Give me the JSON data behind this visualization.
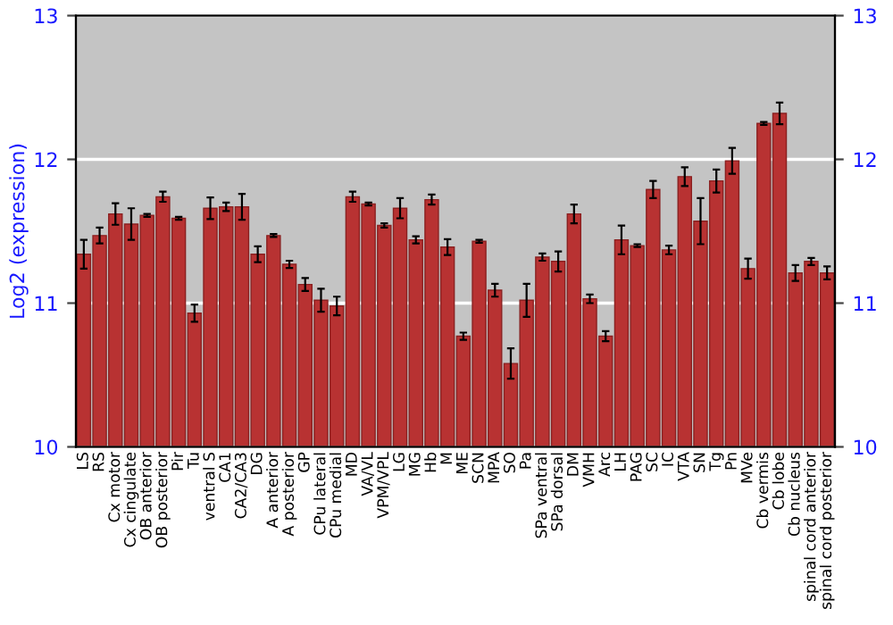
{
  "chart_data": {
    "type": "bar",
    "ylabel": "Log2 (expression)",
    "categories": [
      "LS",
      "RS",
      "Cx motor",
      "Cx cingulate",
      "OB anterior",
      "OB posterior",
      "Pir",
      "Tu",
      "ventral S",
      "CA1",
      "CA2/CA3",
      "DG",
      "A anterior",
      "A posterior",
      "GP",
      "CPu lateral",
      "CPu medial",
      "MD",
      "VA/VL",
      "VPM/VPL",
      "LG",
      "MG",
      "Hb",
      "M",
      "ME",
      "SCN",
      "MPA",
      "SO",
      "Pa",
      "SPa ventral",
      "SPa dorsal",
      "DM",
      "VMH",
      "Arc",
      "LH",
      "PAG",
      "SC",
      "IC",
      "VTA",
      "SN",
      "Tg",
      "Pn",
      "MVe",
      "Cb vermis",
      "Cb lobe",
      "Cb nucleus",
      "spinal cord anterior",
      "spinal cord posterior"
    ],
    "values": [
      11.34,
      11.47,
      11.62,
      11.55,
      11.61,
      11.74,
      11.59,
      10.93,
      11.66,
      11.67,
      11.67,
      11.34,
      11.47,
      11.27,
      11.13,
      11.02,
      10.98,
      11.74,
      11.69,
      11.54,
      11.66,
      11.44,
      11.72,
      11.39,
      10.77,
      11.43,
      11.09,
      10.58,
      11.02,
      11.32,
      11.29,
      11.62,
      11.03,
      10.77,
      11.44,
      11.4,
      11.79,
      11.37,
      11.88,
      11.57,
      11.85,
      11.99,
      11.24,
      12.25,
      12.32,
      11.21,
      11.29,
      11.21
    ],
    "errors": [
      0.1,
      0.055,
      0.075,
      0.11,
      0.01,
      0.035,
      0.01,
      0.06,
      0.075,
      0.03,
      0.09,
      0.055,
      0.01,
      0.025,
      0.045,
      0.08,
      0.065,
      0.035,
      0.01,
      0.015,
      0.07,
      0.025,
      0.035,
      0.055,
      0.025,
      0.01,
      0.045,
      0.105,
      0.115,
      0.025,
      0.07,
      0.065,
      0.03,
      0.035,
      0.1,
      0.01,
      0.06,
      0.03,
      0.065,
      0.16,
      0.08,
      0.09,
      0.07,
      0.01,
      0.075,
      0.055,
      0.025,
      0.045
    ],
    "color": "#b83232",
    "ylim": [
      10,
      13
    ],
    "yticks": [
      10,
      11,
      12,
      13
    ],
    "y2lim": [
      10,
      13
    ],
    "y2ticks": [
      10,
      11,
      12,
      13
    ],
    "grid": "y"
  }
}
